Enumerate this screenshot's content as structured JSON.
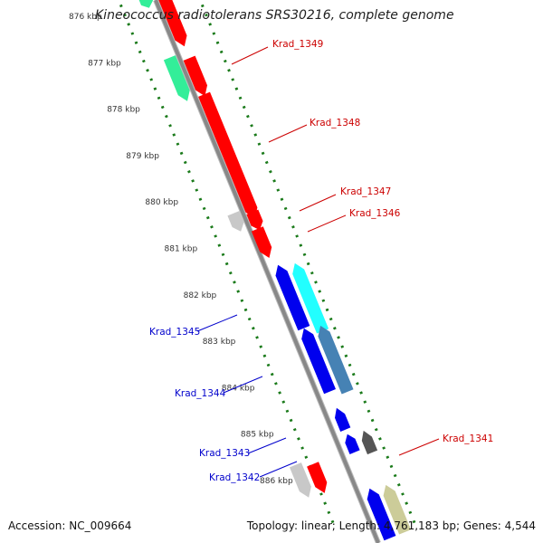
{
  "title": "Kineococcus radiotolerans SRS30216, complete genome",
  "accession_text": "Accession: NC_009664",
  "summary_text": "Topology: linear; Length: 4,761,183 bp; Genes: 4,544",
  "scale_labels": [
    "876 kbp",
    "877 kbp",
    "878 kbp",
    "879 kbp",
    "880 kbp",
    "881 kbp",
    "882 kbp",
    "883 kbp",
    "884 kbp",
    "885 kbp",
    "886 kbp"
  ],
  "colors": {
    "backbone": "#888888",
    "ruler_dots": "#1a7a1a",
    "forward_label": "#0000cc",
    "reverse_label": "#cc0000",
    "red": "#ff0000",
    "green": "#33ee99",
    "gray": "#c8c8c8",
    "blue": "#0000ee",
    "cyan": "#22ffff",
    "steelblue": "#4682b4",
    "dark_gray": "#555555",
    "khaki": "#cccc99"
  },
  "genes": [
    {
      "id": "g876",
      "color": "red",
      "strand": "reverse"
    },
    {
      "id": "g876b",
      "color": "green",
      "strand": "reverse"
    },
    {
      "id": "g1349a",
      "color": "red",
      "strand": "reverse"
    },
    {
      "id": "Krad_1349",
      "label": "Krad_1349",
      "color": "green",
      "strand": "reverse"
    },
    {
      "id": "Krad_1348",
      "label": "Krad_1348",
      "color": "red",
      "strand": "reverse"
    },
    {
      "id": "Krad_1347",
      "label": "Krad_1347",
      "color": "gray",
      "strand": "reverse"
    },
    {
      "id": "g1347r",
      "color": "red",
      "strand": "reverse"
    },
    {
      "id": "Krad_1346",
      "label": "Krad_1346",
      "color": "red",
      "strand": "reverse"
    },
    {
      "id": "Krad_1345",
      "label": "Krad_1345",
      "color": "cyan",
      "strand": "forward"
    },
    {
      "id": "g1345b",
      "color": "blue",
      "strand": "forward"
    },
    {
      "id": "Krad_1344",
      "label": "Krad_1344",
      "color": "steelblue",
      "strand": "forward"
    },
    {
      "id": "g1344b",
      "color": "blue",
      "strand": "forward"
    },
    {
      "id": "g1343b",
      "color": "blue",
      "strand": "forward"
    },
    {
      "id": "Krad_1343",
      "label": "Krad_1343",
      "color": "blue",
      "strand": "forward"
    },
    {
      "id": "Krad_1342",
      "label": "Krad_1342",
      "color": "dark_gray",
      "strand": "forward"
    },
    {
      "id": "g886k",
      "color": "khaki",
      "strand": "forward"
    },
    {
      "id": "g886b",
      "color": "blue",
      "strand": "forward"
    },
    {
      "id": "g1341r",
      "color": "red",
      "strand": "reverse"
    },
    {
      "id": "Krad_1341",
      "label": "Krad_1341",
      "color": "gray",
      "strand": "reverse"
    }
  ]
}
